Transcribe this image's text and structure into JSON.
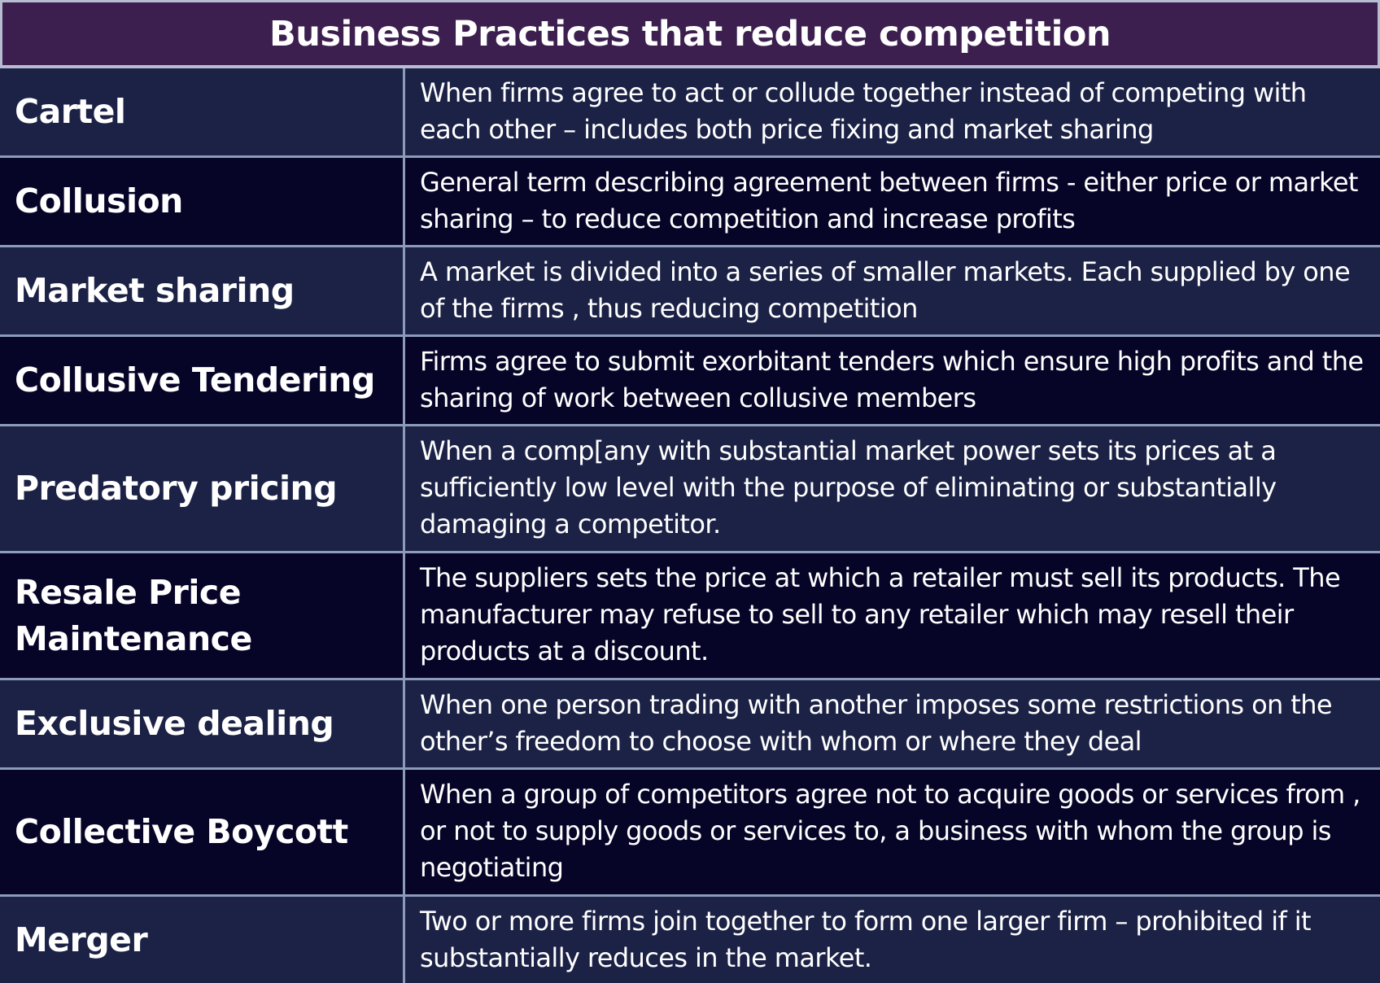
{
  "title": "Business Practices that reduce competition",
  "rows": [
    {
      "term": "Cartel",
      "description": "When firms agree to act or collude together instead of competing with each other – includes both price fixing and market sharing"
    },
    {
      "term": "Collusion",
      "description": "General term describing agreement between firms -  either price or market sharing – to reduce competition and increase profits"
    },
    {
      "term": "Market sharing",
      "description": "A market is divided into a series of smaller markets. Each supplied by one of the firms , thus reducing competition"
    },
    {
      "term": "Collusive Tendering",
      "description": "Firms agree to submit exorbitant tenders which ensure high profits  and the sharing of work between collusive members"
    },
    {
      "term": "Predatory pricing",
      "description": "When a comp[any with substantial market power sets its prices at a sufficiently low level with the purpose of eliminating or substantially damaging a competitor."
    },
    {
      "term": "Resale Price Maintenance",
      "description": "The suppliers sets the price at which a retailer must sell its products. The manufacturer may refuse to sell to any retailer which may resell their products at a discount."
    },
    {
      "term": "Exclusive dealing",
      "description": "When one person trading with another imposes some restrictions on the other’s freedom to choose with whom or where they deal"
    },
    {
      "term": "Collective Boycott",
      "description": "When a group of competitors agree not to acquire goods or services from , or not to supply goods or services to, a business with whom the group is negotiating"
    },
    {
      "term": "Merger",
      "description": "Two or more firms join together to form one larger firm – prohibited if it substantially reduces in the market."
    }
  ]
}
